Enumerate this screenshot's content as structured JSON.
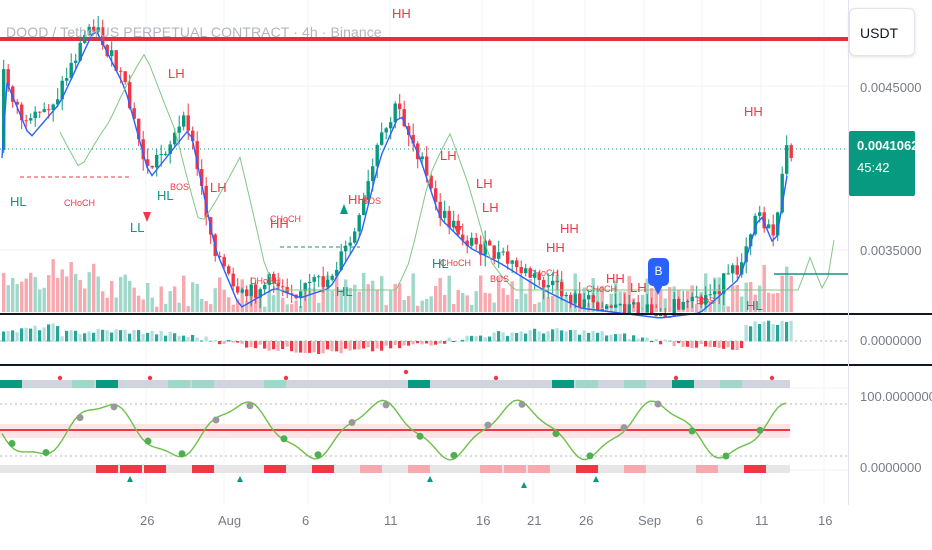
{
  "chart": {
    "title": "DOOD / TetherUS PERPETUAL CONTRACT · 4h · Binance",
    "currency": "USDT",
    "last_price": "0.0041062",
    "countdown": "45:42",
    "price_axis": [
      "0.0045000",
      "0.0035000"
    ],
    "osc_axis": [
      "0.0000000"
    ],
    "rsi_axis": [
      "100.0000000",
      "0.0000000"
    ],
    "time_axis": [
      "26",
      "Aug",
      "6",
      "11",
      "16",
      "21",
      "26",
      "Sep",
      "6",
      "11",
      "16"
    ],
    "marker": "B",
    "colors": {
      "up": "#089981",
      "down": "#f23645",
      "ema": "#2962ff",
      "band": "#81c784",
      "level": "#e0303f"
    }
  },
  "labels": {
    "hh": "HH",
    "lh": "LH",
    "hl": "HL",
    "ll": "LL",
    "choch": "CHoCH",
    "bos": "BOS"
  }
}
